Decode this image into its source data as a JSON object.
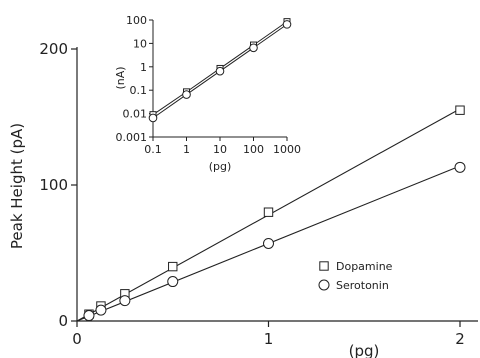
{
  "chart_data": [
    {
      "type": "scatter",
      "x": [
        0.0625,
        0.125,
        0.25,
        0.5,
        1,
        2
      ],
      "series": [
        {
          "name": "Dopamine",
          "marker": "square",
          "values": [
            5,
            11,
            20,
            40,
            80,
            155
          ]
        },
        {
          "name": "Serotonin",
          "marker": "circle",
          "values": [
            4,
            8,
            15,
            29,
            57,
            113
          ]
        }
      ],
      "fits": [
        {
          "series": "Dopamine",
          "points": [
            [
              0,
              0
            ],
            [
              2,
              156
            ]
          ]
        },
        {
          "series": "Serotonin",
          "points": [
            [
              0,
              0
            ],
            [
              2,
              114
            ]
          ]
        }
      ],
      "xlabel": "(pg)",
      "ylabel": "Peak Height (pA)",
      "xlim": [
        0,
        2
      ],
      "ylim": [
        0,
        200
      ],
      "xticks": [
        {
          "value": 0,
          "label": "0"
        },
        {
          "value": 1,
          "label": "1"
        },
        {
          "value": 2,
          "label": "2"
        }
      ],
      "yticks": [
        {
          "value": 0,
          "label": "0"
        },
        {
          "value": 100,
          "label": "100"
        },
        {
          "value": 200,
          "label": "200"
        }
      ],
      "grid": false,
      "legend": {
        "placement": "bottom-right",
        "entries": [
          "Dopamine",
          "Serotonin"
        ]
      }
    },
    {
      "type": "line",
      "xscale": "log",
      "yscale": "log",
      "x": [
        0.1,
        1,
        10,
        100,
        1000
      ],
      "series": [
        {
          "name": "Dopamine",
          "marker": "square",
          "values": [
            0.009,
            0.085,
            0.85,
            8.5,
            85
          ]
        },
        {
          "name": "Serotonin",
          "marker": "circle",
          "values": [
            0.0065,
            0.065,
            0.65,
            6.5,
            65
          ]
        }
      ],
      "xlabel": "(pg)",
      "ylabel": "(nA)",
      "xlim": [
        0.1,
        1000
      ],
      "ylim": [
        0.001,
        100
      ],
      "xticks": [
        {
          "value": 0.1,
          "label": "0.1"
        },
        {
          "value": 1,
          "label": "1"
        },
        {
          "value": 10,
          "label": "10"
        },
        {
          "value": 100,
          "label": "100"
        },
        {
          "value": 1000,
          "label": "1000"
        }
      ],
      "yticks": [
        {
          "value": 0.001,
          "label": "0.001"
        },
        {
          "value": 0.01,
          "label": "0.01"
        },
        {
          "value": 0.1,
          "label": "0.1"
        },
        {
          "value": 1,
          "label": "1"
        },
        {
          "value": 10,
          "label": "10"
        },
        {
          "value": 100,
          "label": "100"
        }
      ],
      "grid": false
    }
  ]
}
